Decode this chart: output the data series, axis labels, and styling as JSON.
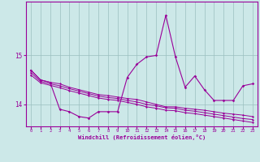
{
  "xlabel": "Windchill (Refroidissement éolien,°C)",
  "hours": [
    0,
    1,
    2,
    3,
    4,
    5,
    6,
    7,
    8,
    9,
    10,
    11,
    12,
    13,
    14,
    15,
    16,
    17,
    18,
    19,
    20,
    21,
    22,
    23
  ],
  "line_main": [
    14.7,
    14.5,
    14.45,
    13.9,
    13.85,
    13.75,
    13.72,
    13.85,
    13.85,
    13.85,
    14.55,
    14.82,
    14.97,
    15.0,
    15.82,
    14.97,
    14.35,
    14.58,
    14.3,
    14.08,
    14.08,
    14.08,
    14.38,
    14.42
  ],
  "line_top": [
    14.7,
    14.5,
    14.45,
    14.42,
    14.35,
    14.3,
    14.25,
    14.2,
    14.18,
    14.15,
    14.12,
    14.1,
    14.05,
    14.0,
    13.95,
    13.95,
    13.92,
    13.9,
    13.88,
    13.85,
    13.82,
    13.8,
    13.78,
    13.75
  ],
  "line_mid": [
    14.65,
    14.47,
    14.42,
    14.38,
    14.32,
    14.27,
    14.22,
    14.17,
    14.14,
    14.12,
    14.08,
    14.05,
    14.0,
    13.97,
    13.93,
    13.92,
    13.88,
    13.86,
    13.83,
    13.8,
    13.77,
    13.74,
    13.71,
    13.69
  ],
  "line_bot": [
    14.6,
    14.44,
    14.39,
    14.34,
    14.28,
    14.23,
    14.18,
    14.13,
    14.1,
    14.08,
    14.04,
    14.0,
    13.95,
    13.92,
    13.88,
    13.87,
    13.83,
    13.81,
    13.78,
    13.75,
    13.72,
    13.69,
    13.66,
    13.63
  ],
  "color": "#990099",
  "bg_color": "#cce8e8",
  "grid_color": "#9bbfbf",
  "ylim": [
    13.55,
    16.1
  ],
  "yticks": [
    14,
    15
  ],
  "xlim": [
    -0.5,
    23.5
  ]
}
